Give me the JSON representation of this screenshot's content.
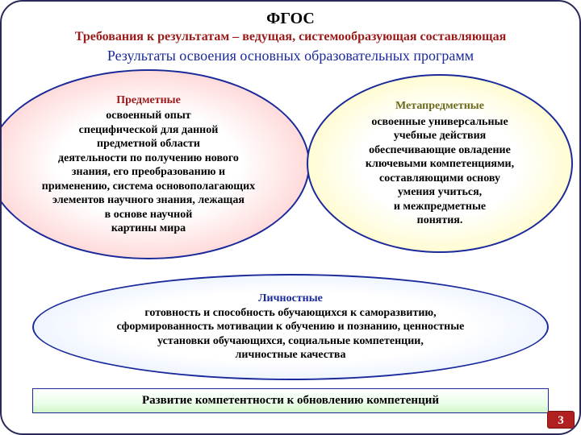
{
  "header": {
    "title": "ФГОС",
    "subtitle_red": "Требования к результатам – ведущая, системообразующая составляющая",
    "subtitle_blue": "Результаты освоения основных образовательных программ"
  },
  "ovals": {
    "left": {
      "head": "Предметные",
      "body": "освоенный опыт\nспецифической для данной\nпредметной области\nдеятельности по получению нового\nзнания, его преобразованию и\nприменению, система основополагающих\nэлементов научного знания, лежащая\nв основе научной\nкартины мира",
      "head_color": "#9a1a1a",
      "fill_edge": "#f89090"
    },
    "right": {
      "head": "Метапредметные",
      "body": "освоенные  универсальные\nучебные действия\nобеспечивающие овладение\nключевыми компетенциями,\nсоставляющими основу\nумения учиться,\nи межпредметные\nпонятия.",
      "head_color": "#6a6a1a",
      "fill_edge": "#f5ee7a"
    },
    "bottom": {
      "head": "Личностные",
      "body": "готовность и способность обучающихся к саморазвитию,\nсформированность мотивации к обучению и познанию, ценностные\nустановки обучающихся, социальные компетенции,\nличностные качества",
      "head_color": "#1a2a9a",
      "fill_edge": "#cadcff"
    }
  },
  "footer_bar": "Развитие компетентности к обновлению компетенций",
  "page_number": "3",
  "style": {
    "frame_border": "#2a2a5a",
    "oval_border": "#1a2a9a",
    "red_text": "#9a1a1a",
    "blue_text": "#1a2a9a",
    "page_bg": "#b02020",
    "title_fontsize": 20,
    "sub_fontsize": 16,
    "blue_fontsize": 18,
    "oval_fontsize": 14
  }
}
